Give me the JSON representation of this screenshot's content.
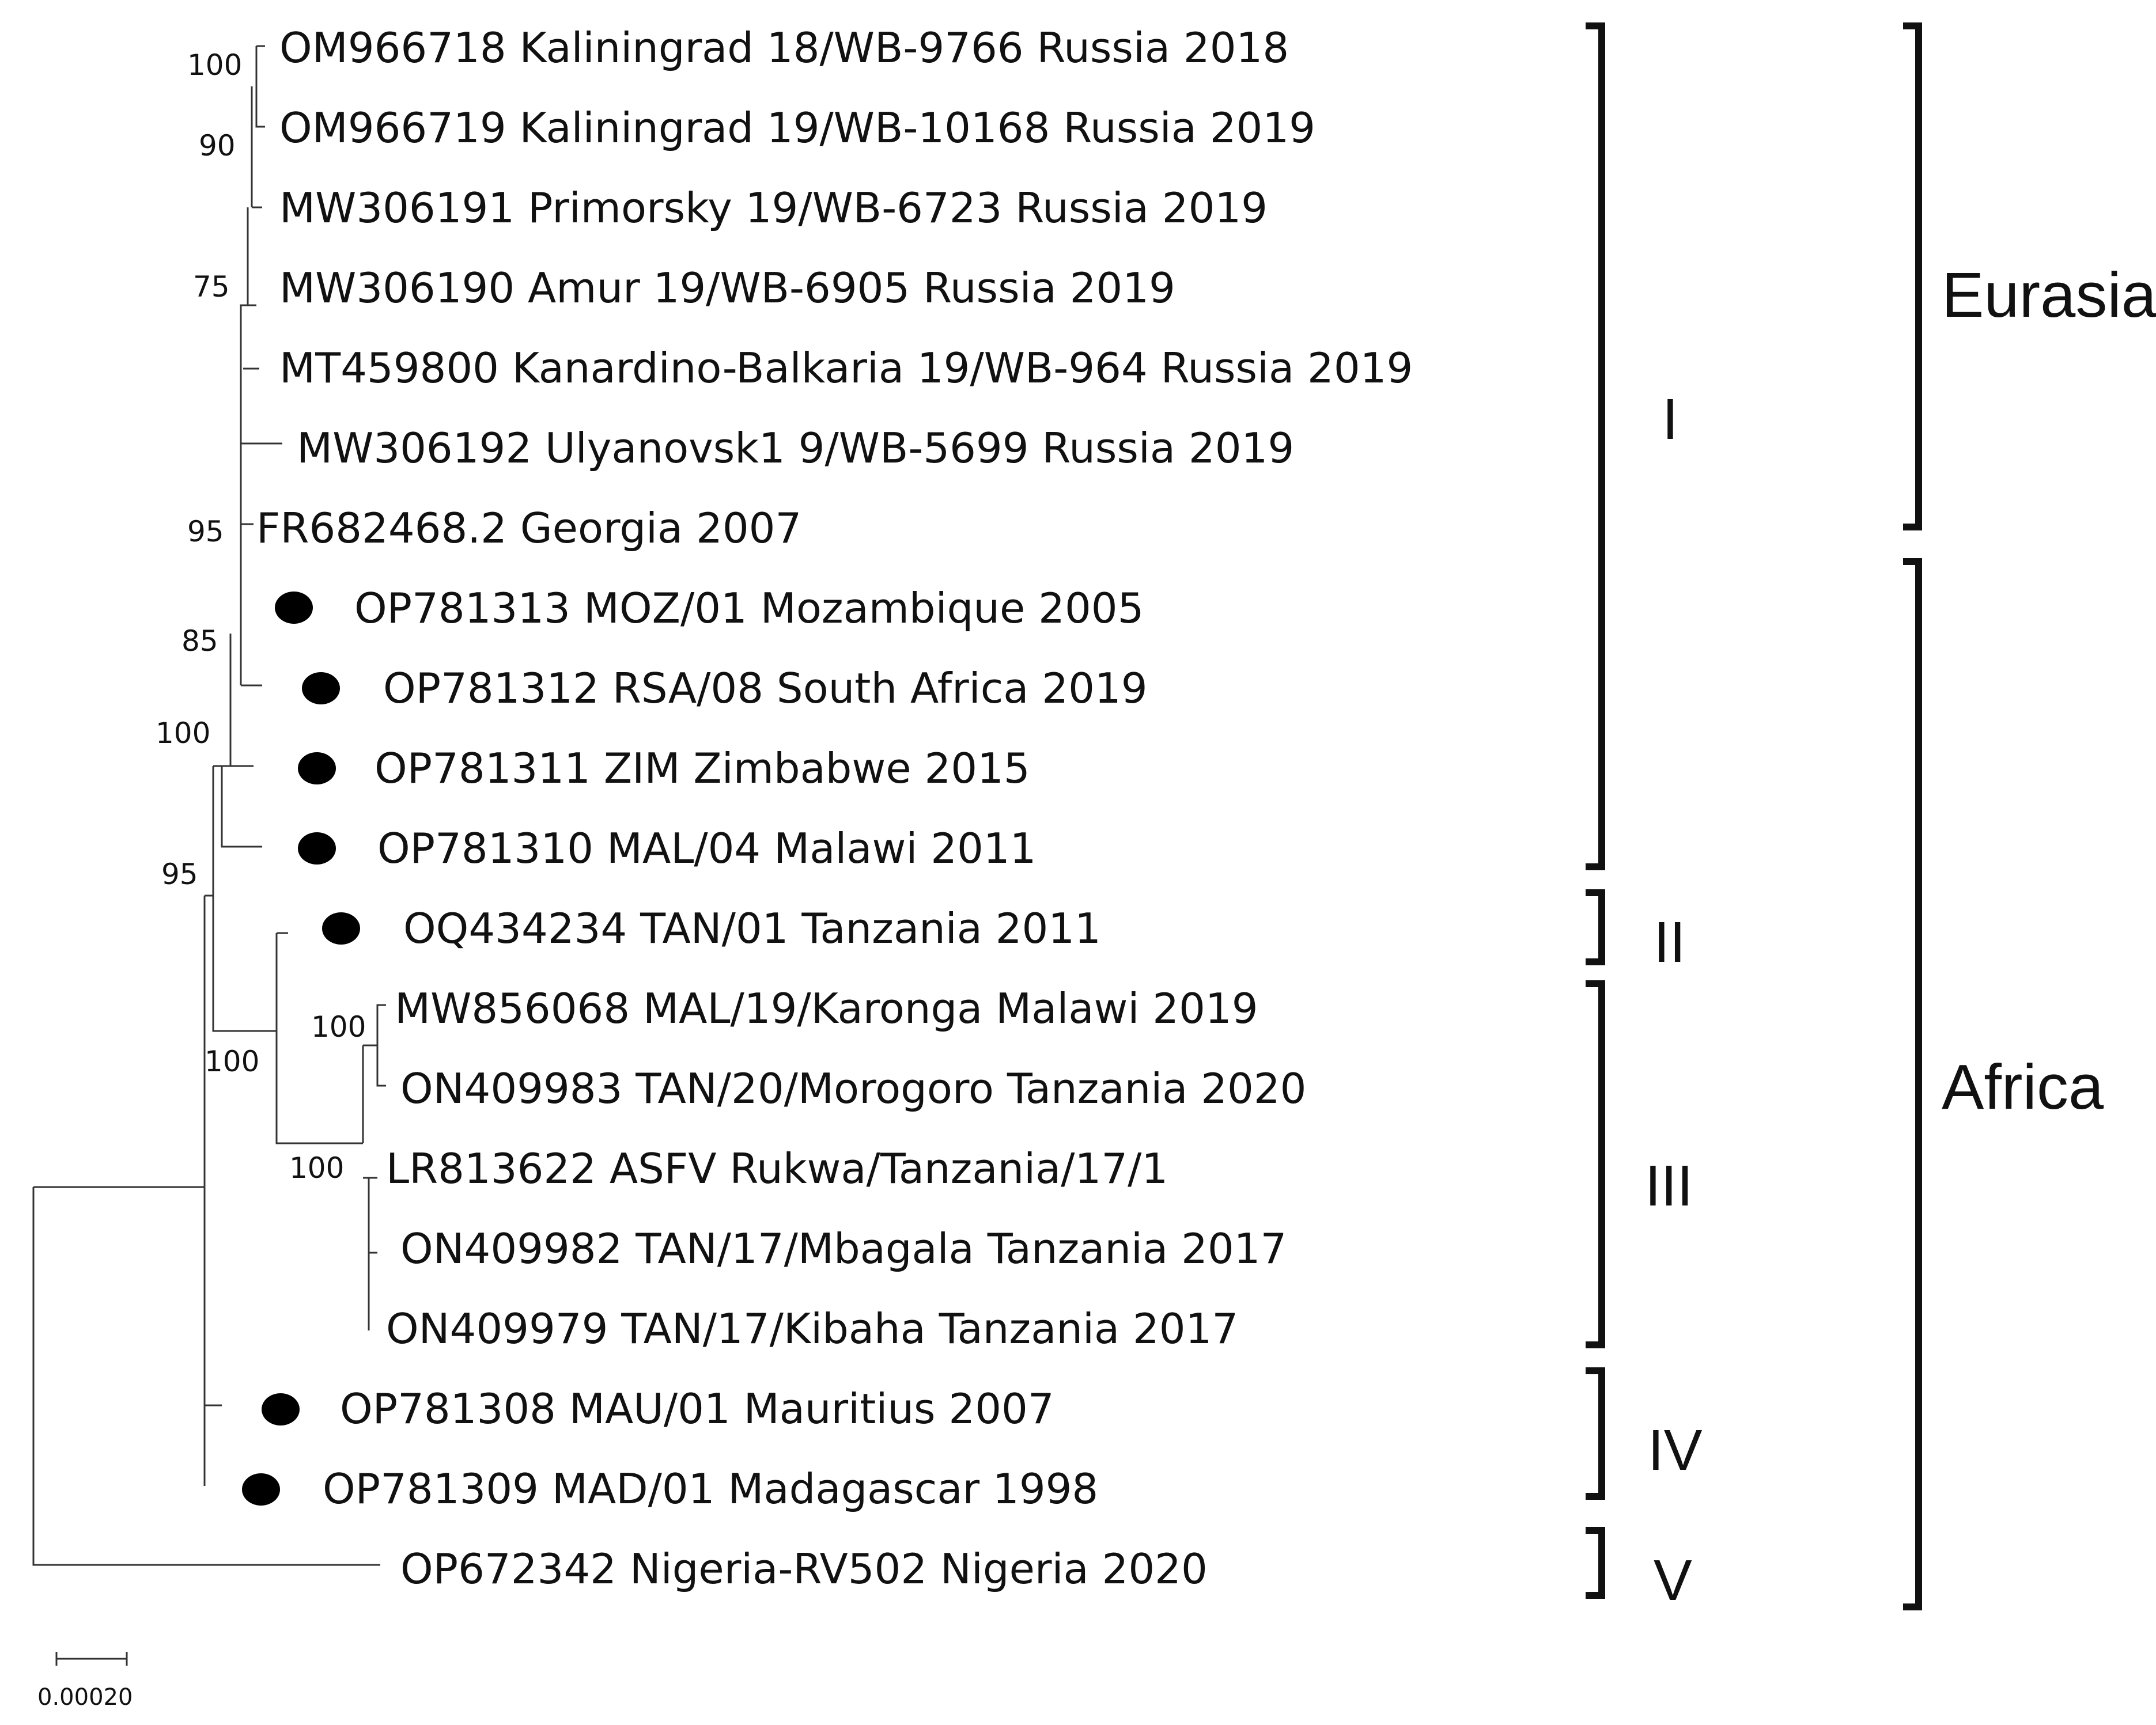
{
  "tree": {
    "taxa": [
      {
        "label": "OM966718 Kaliningrad 18/WB-9766 Russia 2018",
        "marker": false
      },
      {
        "label": "OM966719 Kaliningrad 19/WB-10168 Russia 2019",
        "marker": false
      },
      {
        "label": "MW306191 Primorsky 19/WB-6723 Russia 2019",
        "marker": false
      },
      {
        "label": "MW306190 Amur 19/WB-6905 Russia 2019",
        "marker": false
      },
      {
        "label": "MT459800 Kanardino-Balkaria 19/WB-964 Russia 2019",
        "marker": false
      },
      {
        "label": "MW306192 Ulyanovsk1 9/WB-5699 Russia 2019",
        "marker": false
      },
      {
        "label": "FR682468.2 Georgia 2007",
        "marker": false
      },
      {
        "label": "OP781313 MOZ/01 Mozambique 2005",
        "marker": true
      },
      {
        "label": "OP781312 RSA/08 South Africa 2019",
        "marker": true
      },
      {
        "label": "OP781311 ZIM Zimbabwe 2015",
        "marker": true
      },
      {
        "label": "OP781310 MAL/04 Malawi 2011",
        "marker": true
      },
      {
        "label": "OQ434234 TAN/01 Tanzania 2011",
        "marker": true
      },
      {
        "label": "MW856068 MAL/19/Karonga Malawi 2019",
        "marker": false
      },
      {
        "label": "ON409983 TAN/20/Morogoro Tanzania 2020",
        "marker": false
      },
      {
        "label": "LR813622 ASFV Rukwa/Tanzania/17/1",
        "marker": false
      },
      {
        "label": "ON409982 TAN/17/Mbagala Tanzania 2017",
        "marker": false
      },
      {
        "label": "ON409979 TAN/17/Kibaha Tanzania 2017",
        "marker": false
      },
      {
        "label": "OP781308 MAU/01 Mauritius 2007",
        "marker": true
      },
      {
        "label": "OP781309 MAD/01 Madagascar 1998",
        "marker": true
      },
      {
        "label": "OP672342 Nigeria-RV502 Nigeria 2020",
        "marker": false
      }
    ],
    "bootstrap": [
      "100",
      "90",
      "75",
      "95",
      "85",
      "100",
      "95",
      "100",
      "100",
      "100"
    ],
    "scale_bar_label": "0.00020",
    "clades": [
      "I",
      "II",
      "III",
      "IV",
      "V"
    ],
    "regions": [
      "Eurasia",
      "Africa"
    ]
  }
}
